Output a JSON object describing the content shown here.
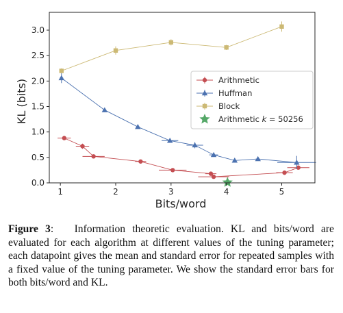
{
  "chart_data": {
    "type": "line",
    "xlabel": "Bits/word",
    "ylabel": "KL (bits)",
    "xticks": [
      1,
      2,
      3,
      4,
      5
    ],
    "yticks": [
      "0.0",
      "0.5",
      "1.0",
      "1.5",
      "2.0",
      "2.5",
      "3.0"
    ],
    "xlim": [
      0.8,
      5.6
    ],
    "ylim": [
      0,
      3.35
    ],
    "grid": false,
    "legend_position": "right",
    "series": [
      {
        "name": "Arithmetic",
        "color": "#c44e52",
        "marker": "circle",
        "points": [
          {
            "x": 1.07,
            "y": 0.88,
            "xerr": 0.12,
            "yerr": 0.04
          },
          {
            "x": 1.4,
            "y": 0.72,
            "xerr": 0.12,
            "yerr": 0.05
          },
          {
            "x": 1.6,
            "y": 0.52,
            "xerr": 0.2,
            "yerr": 0.03
          },
          {
            "x": 2.45,
            "y": 0.42,
            "xerr": 0.1,
            "yerr": 0.02
          },
          {
            "x": 3.03,
            "y": 0.25,
            "xerr": 0.25,
            "yerr": 0.02
          },
          {
            "x": 3.72,
            "y": 0.18,
            "xerr": 0.1,
            "yerr": 0.02
          },
          {
            "x": 3.77,
            "y": 0.12,
            "xerr": 0.28,
            "yerr": 0.02
          },
          {
            "x": 5.05,
            "y": 0.2,
            "xerr": 0.15,
            "yerr": 0.02
          },
          {
            "x": 5.3,
            "y": 0.3,
            "xerr": 0.2,
            "yerr": 0.02
          }
        ]
      },
      {
        "name": "Huffman",
        "color": "#4c72b0",
        "marker": "triangle",
        "points": [
          {
            "x": 1.02,
            "y": 2.06,
            "xerr": 0.03,
            "yerr": 0.1
          },
          {
            "x": 1.8,
            "y": 1.43,
            "xerr": 0.03,
            "yerr": 0.04
          },
          {
            "x": 2.4,
            "y": 1.1,
            "xerr": 0.03,
            "yerr": 0.03
          },
          {
            "x": 2.98,
            "y": 0.83,
            "xerr": 0.15,
            "yerr": 0.03
          },
          {
            "x": 3.43,
            "y": 0.74,
            "xerr": 0.15,
            "yerr": 0.06
          },
          {
            "x": 3.77,
            "y": 0.55,
            "xerr": 0.08,
            "yerr": 0.03
          },
          {
            "x": 4.15,
            "y": 0.44,
            "xerr": 0.03,
            "yerr": 0.02
          },
          {
            "x": 4.57,
            "y": 0.47,
            "xerr": 0.03,
            "yerr": 0.03
          },
          {
            "x": 5.27,
            "y": 0.4,
            "xerr": 0.35,
            "yerr": 0.13
          }
        ]
      },
      {
        "name": "Block",
        "color": "#ccb974",
        "marker": "square",
        "points": [
          {
            "x": 1.02,
            "y": 2.2,
            "xerr": 0.03,
            "yerr": 0.05
          },
          {
            "x": 2.0,
            "y": 2.6,
            "xerr": 0.03,
            "yerr": 0.08
          },
          {
            "x": 3.0,
            "y": 2.76,
            "xerr": 0.03,
            "yerr": 0.06
          },
          {
            "x": 4.0,
            "y": 2.66,
            "xerr": 0.03,
            "yerr": 0.05
          },
          {
            "x": 5.0,
            "y": 3.07,
            "xerr": 0.03,
            "yerr": 0.1
          }
        ]
      },
      {
        "name": "Arithmetic k = 50256",
        "color": "#55a868",
        "marker": "star",
        "points": [
          {
            "x": 4.02,
            "y": 0.01
          }
        ]
      }
    ]
  },
  "legend": {
    "items": [
      {
        "label": "Arithmetic",
        "italic_suffix": "",
        "after_suffix": ""
      },
      {
        "label": "Huffman",
        "italic_suffix": "",
        "after_suffix": ""
      },
      {
        "label": "Block",
        "italic_suffix": "",
        "after_suffix": ""
      },
      {
        "label": "Arithmetic ",
        "italic_suffix": "k",
        "after_suffix": " = 50256"
      }
    ]
  },
  "caption": {
    "label": "Figure 3",
    "label_suffix": ":",
    "text": "Information theoretic evaluation. KL and bits/word are evaluated for each algorithm at different values of the tuning parameter; each datapoint gives the mean and standard error for repeated samples with a fixed value of the tuning parameter. We show the standard error bars for both bits/word and KL."
  }
}
